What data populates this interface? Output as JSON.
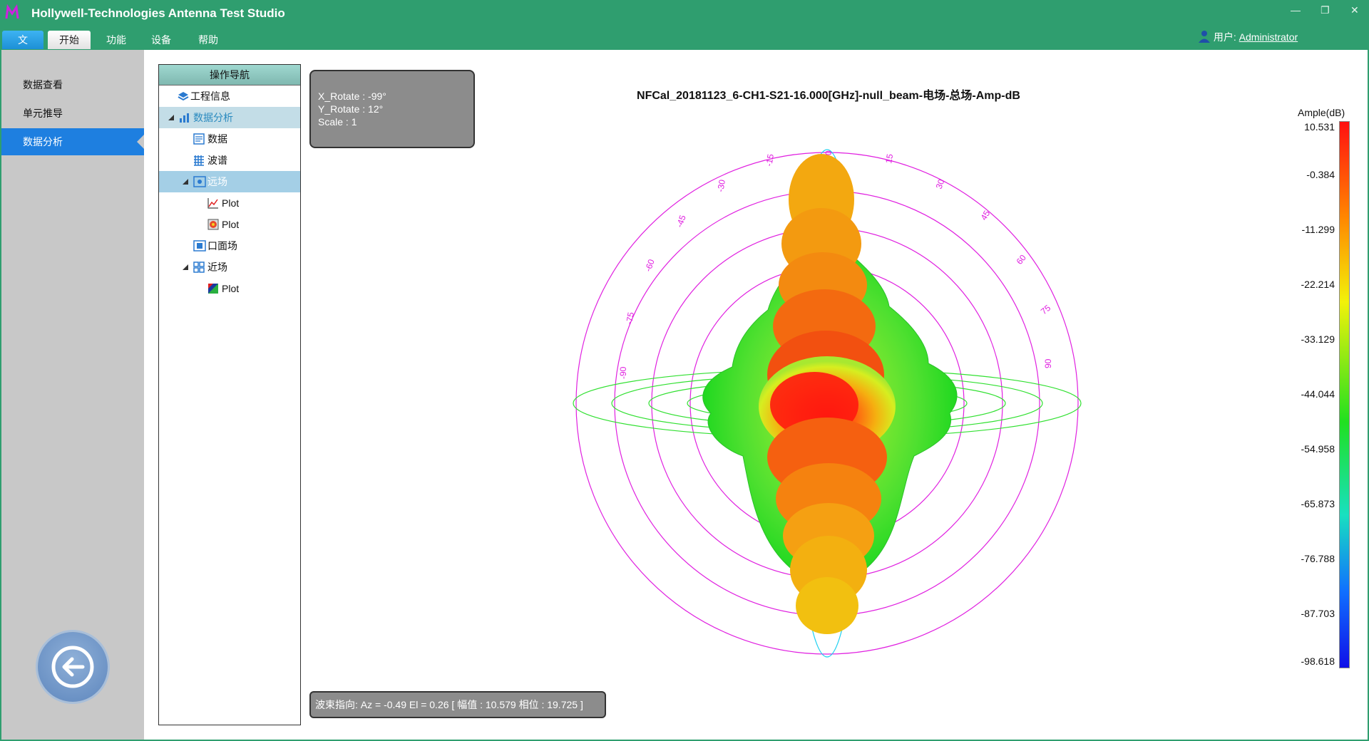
{
  "app": {
    "title": "Hollywell-Technologies Antenna Test Studio"
  },
  "menu": [
    "文件",
    "开始",
    "功能",
    "设备",
    "帮助"
  ],
  "user": {
    "prefix": "用户:",
    "name": "Administrator"
  },
  "sidebar": {
    "items": [
      "数据查看",
      "单元推导",
      "数据分析"
    ]
  },
  "nav": {
    "header": "操作导航",
    "items": [
      {
        "label": "工程信息"
      },
      {
        "label": "数据分析"
      },
      {
        "label": "数据"
      },
      {
        "label": "波谱"
      },
      {
        "label": "远场"
      },
      {
        "label": "Plot"
      },
      {
        "label": "Plot"
      },
      {
        "label": "口面场"
      },
      {
        "label": "近场"
      },
      {
        "label": "Plot"
      }
    ]
  },
  "view": {
    "x_rotate": "X_Rotate : -99°",
    "y_rotate": "Y_Rotate : 12°",
    "scale": "Scale : 1"
  },
  "plot": {
    "title": "NFCal_20181123_6-CH1-S21-16.000[GHz]-null_beam-电场-总场-Amp-dB",
    "angle_labels": [
      "0",
      "15",
      "30",
      "45",
      "60",
      "75",
      "90",
      "-15",
      "-30",
      "-45",
      "-60",
      "-75",
      "-90"
    ]
  },
  "colorbar": {
    "title": "Ample(dB)",
    "labels": [
      "10.531",
      "-0.384",
      "-11.299",
      "-22.214",
      "-33.129",
      "-44.044",
      "-54.958",
      "-65.873",
      "-76.788",
      "-87.703",
      "-98.618"
    ]
  },
  "status": {
    "text": "波束指向: Az = -0.49 El = 0.26 [ 幅值 : 10.579  相位 : 19.725 ]"
  }
}
